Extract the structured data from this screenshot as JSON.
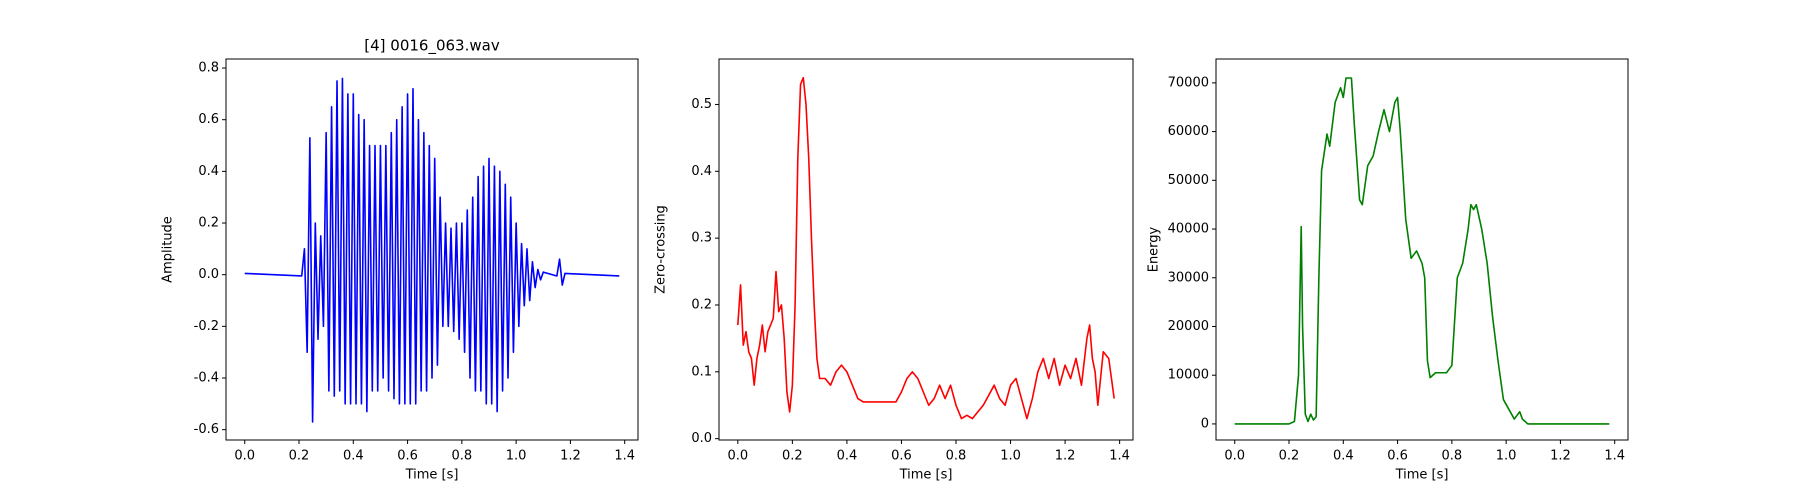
{
  "chart_data": [
    {
      "type": "line",
      "title": "[4] 0016_063.wav",
      "x_label": "Time [s]",
      "y_label": "Amplitude",
      "series": [
        {
          "color": "#0000ff",
          "x": [
            0,
            0.21,
            0.22,
            0.23,
            0.24,
            0.25,
            0.26,
            0.27,
            0.28,
            0.29,
            0.3,
            0.31,
            0.32,
            0.33,
            0.34,
            0.35,
            0.36,
            0.37,
            0.38,
            0.39,
            0.4,
            0.41,
            0.42,
            0.43,
            0.44,
            0.45,
            0.46,
            0.47,
            0.48,
            0.49,
            0.5,
            0.51,
            0.52,
            0.53,
            0.54,
            0.55,
            0.56,
            0.57,
            0.58,
            0.59,
            0.6,
            0.61,
            0.62,
            0.63,
            0.64,
            0.65,
            0.66,
            0.67,
            0.68,
            0.69,
            0.7,
            0.71,
            0.72,
            0.73,
            0.74,
            0.75,
            0.76,
            0.77,
            0.78,
            0.79,
            0.8,
            0.81,
            0.82,
            0.83,
            0.84,
            0.85,
            0.86,
            0.87,
            0.88,
            0.89,
            0.9,
            0.91,
            0.92,
            0.93,
            0.94,
            0.95,
            0.96,
            0.97,
            0.98,
            0.99,
            1.0,
            1.01,
            1.02,
            1.03,
            1.04,
            1.05,
            1.06,
            1.07,
            1.08,
            1.09,
            1.1,
            1.15,
            1.16,
            1.17,
            1.18,
            1.38
          ],
          "values": [
            0.005,
            -0.005,
            0.1,
            -0.3,
            0.53,
            -0.57,
            0.2,
            -0.25,
            0.15,
            -0.2,
            0.55,
            -0.45,
            0.65,
            -0.47,
            0.75,
            -0.45,
            0.76,
            -0.5,
            0.7,
            -0.5,
            0.7,
            -0.5,
            0.62,
            -0.5,
            0.6,
            -0.53,
            0.5,
            -0.45,
            0.5,
            -0.45,
            0.5,
            -0.4,
            0.5,
            -0.45,
            0.55,
            -0.48,
            0.6,
            -0.5,
            0.65,
            -0.5,
            0.7,
            -0.5,
            0.72,
            -0.5,
            0.6,
            -0.45,
            0.55,
            -0.45,
            0.5,
            -0.4,
            0.45,
            -0.35,
            0.3,
            -0.2,
            0.2,
            -0.2,
            0.18,
            -0.22,
            0.2,
            -0.25,
            0.2,
            -0.3,
            0.25,
            -0.4,
            0.3,
            -0.45,
            0.38,
            -0.45,
            0.42,
            -0.5,
            0.45,
            -0.5,
            0.42,
            -0.53,
            0.4,
            -0.45,
            0.35,
            -0.4,
            0.3,
            -0.3,
            0.2,
            -0.2,
            0.12,
            -0.12,
            0.1,
            -0.1,
            0.05,
            -0.05,
            0.02,
            -0.02,
            0.01,
            -0.005,
            0.06,
            -0.04,
            0.005,
            -0.005
          ]
        }
      ],
      "xlim": [
        -0.069,
        1.449
      ],
      "ylim": [
        -0.64,
        0.835
      ],
      "xticks": [
        {
          "value": 0,
          "label": "0.0"
        },
        0.2,
        0.4,
        0.6,
        0.8,
        {
          "value": 1,
          "label": "1.0"
        },
        1.2,
        1.4
      ],
      "yticks": [
        -0.6,
        -0.4,
        -0.2,
        {
          "value": 0,
          "label": "0.0"
        },
        0.2,
        0.4,
        0.6,
        0.8
      ]
    },
    {
      "type": "line",
      "x_label": "Time [s]",
      "y_label": "Zero-crossing",
      "series": [
        {
          "color": "#ff0000",
          "x": [
            0,
            0.01,
            0.02,
            0.03,
            0.04,
            0.05,
            0.06,
            0.07,
            0.08,
            0.09,
            0.1,
            0.11,
            0.12,
            0.13,
            0.14,
            0.15,
            0.16,
            0.17,
            0.18,
            0.19,
            0.2,
            0.21,
            0.22,
            0.23,
            0.24,
            0.25,
            0.26,
            0.27,
            0.28,
            0.29,
            0.3,
            0.32,
            0.34,
            0.36,
            0.38,
            0.4,
            0.42,
            0.44,
            0.46,
            0.5,
            0.55,
            0.58,
            0.6,
            0.62,
            0.64,
            0.66,
            0.68,
            0.7,
            0.72,
            0.74,
            0.76,
            0.78,
            0.8,
            0.82,
            0.84,
            0.86,
            0.88,
            0.9,
            0.92,
            0.94,
            0.96,
            0.98,
            1.0,
            1.02,
            1.04,
            1.06,
            1.08,
            1.1,
            1.12,
            1.14,
            1.16,
            1.18,
            1.2,
            1.22,
            1.24,
            1.26,
            1.28,
            1.29,
            1.3,
            1.31,
            1.32,
            1.34,
            1.36,
            1.38
          ],
          "values": [
            0.17,
            0.23,
            0.14,
            0.16,
            0.13,
            0.12,
            0.08,
            0.12,
            0.14,
            0.17,
            0.13,
            0.16,
            0.17,
            0.18,
            0.25,
            0.19,
            0.2,
            0.15,
            0.07,
            0.04,
            0.08,
            0.2,
            0.42,
            0.53,
            0.54,
            0.5,
            0.42,
            0.3,
            0.2,
            0.12,
            0.09,
            0.09,
            0.08,
            0.1,
            0.11,
            0.1,
            0.08,
            0.06,
            0.055,
            0.055,
            0.055,
            0.055,
            0.07,
            0.09,
            0.1,
            0.09,
            0.07,
            0.05,
            0.06,
            0.08,
            0.06,
            0.08,
            0.05,
            0.03,
            0.035,
            0.03,
            0.04,
            0.05,
            0.065,
            0.08,
            0.06,
            0.05,
            0.08,
            0.09,
            0.06,
            0.03,
            0.06,
            0.1,
            0.12,
            0.09,
            0.12,
            0.08,
            0.11,
            0.09,
            0.12,
            0.08,
            0.15,
            0.17,
            0.12,
            0.1,
            0.05,
            0.13,
            0.12,
            0.06
          ]
        }
      ],
      "xlim": [
        -0.069,
        1.449
      ],
      "ylim": [
        -0.002,
        0.568
      ],
      "xticks": [
        {
          "value": 0,
          "label": "0.0"
        },
        0.2,
        0.4,
        0.6,
        0.8,
        {
          "value": 1,
          "label": "1.0"
        },
        1.2,
        1.4
      ],
      "yticks": [
        {
          "value": 0,
          "label": "0.0"
        },
        0.1,
        0.2,
        0.3,
        0.4,
        0.5
      ]
    },
    {
      "type": "line",
      "x_label": "Time [s]",
      "y_label": "Energy",
      "series": [
        {
          "color": "#008000",
          "x": [
            0,
            0.2,
            0.22,
            0.235,
            0.245,
            0.25,
            0.26,
            0.27,
            0.28,
            0.29,
            0.3,
            0.31,
            0.32,
            0.34,
            0.35,
            0.37,
            0.39,
            0.4,
            0.41,
            0.43,
            0.44,
            0.46,
            0.47,
            0.49,
            0.51,
            0.53,
            0.55,
            0.57,
            0.59,
            0.6,
            0.61,
            0.63,
            0.65,
            0.67,
            0.69,
            0.7,
            0.71,
            0.72,
            0.74,
            0.78,
            0.8,
            0.82,
            0.84,
            0.86,
            0.87,
            0.88,
            0.89,
            0.91,
            0.93,
            0.95,
            0.97,
            0.99,
            1.01,
            1.03,
            1.05,
            1.06,
            1.08,
            1.38
          ],
          "values": [
            0,
            0,
            500,
            10000,
            40500,
            20000,
            2000,
            500,
            2000,
            800,
            1500,
            30000,
            52000,
            59500,
            57000,
            66000,
            69000,
            67000,
            71000,
            71000,
            62000,
            46000,
            45000,
            53000,
            55000,
            60000,
            64500,
            60000,
            66000,
            67000,
            60000,
            42000,
            34000,
            35500,
            33000,
            30000,
            13000,
            9500,
            10500,
            10500,
            12000,
            30000,
            33000,
            40000,
            45000,
            44000,
            45000,
            40000,
            33000,
            22000,
            13000,
            5000,
            3000,
            1000,
            2500,
            1000,
            0,
            0
          ]
        }
      ],
      "xlim": [
        -0.069,
        1.449
      ],
      "ylim": [
        -3300,
        74900
      ],
      "xticks": [
        {
          "value": 0,
          "label": "0.0"
        },
        0.2,
        0.4,
        0.6,
        0.8,
        {
          "value": 1,
          "label": "1.0"
        },
        1.2,
        1.4
      ],
      "yticks": [
        0,
        10000,
        20000,
        30000,
        40000,
        50000,
        60000,
        70000
      ]
    }
  ]
}
